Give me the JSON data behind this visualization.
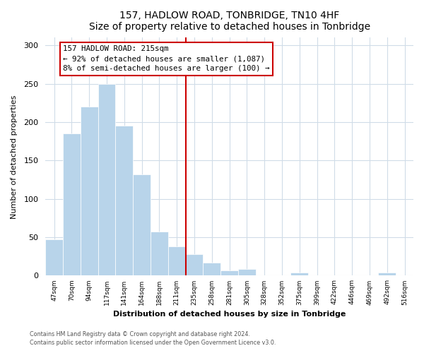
{
  "title": "157, HADLOW ROAD, TONBRIDGE, TN10 4HF",
  "subtitle": "Size of property relative to detached houses in Tonbridge",
  "xlabel": "Distribution of detached houses by size in Tonbridge",
  "ylabel": "Number of detached properties",
  "categories": [
    "47sqm",
    "70sqm",
    "94sqm",
    "117sqm",
    "141sqm",
    "164sqm",
    "188sqm",
    "211sqm",
    "235sqm",
    "258sqm",
    "281sqm",
    "305sqm",
    "328sqm",
    "352sqm",
    "375sqm",
    "399sqm",
    "422sqm",
    "446sqm",
    "469sqm",
    "492sqm",
    "516sqm"
  ],
  "values": [
    47,
    185,
    220,
    250,
    195,
    132,
    57,
    38,
    28,
    17,
    7,
    9,
    0,
    0,
    4,
    0,
    0,
    0,
    0,
    4,
    0
  ],
  "bar_color": "#b8d4ea",
  "vline_index": 7,
  "vline_color": "#cc0000",
  "annotation_title": "157 HADLOW ROAD: 215sqm",
  "annotation_line1": "← 92% of detached houses are smaller (1,087)",
  "annotation_line2": "8% of semi-detached houses are larger (100) →",
  "annotation_box_facecolor": "#ffffff",
  "annotation_box_edgecolor": "#cc0000",
  "ylim": [
    0,
    310
  ],
  "yticks": [
    0,
    50,
    100,
    150,
    200,
    250,
    300
  ],
  "footer1": "Contains HM Land Registry data © Crown copyright and database right 2024.",
  "footer2": "Contains public sector information licensed under the Open Government Licence v3.0.",
  "bg_color": "#ffffff",
  "plot_bg_color": "#ffffff",
  "grid_color": "#d0dce8"
}
